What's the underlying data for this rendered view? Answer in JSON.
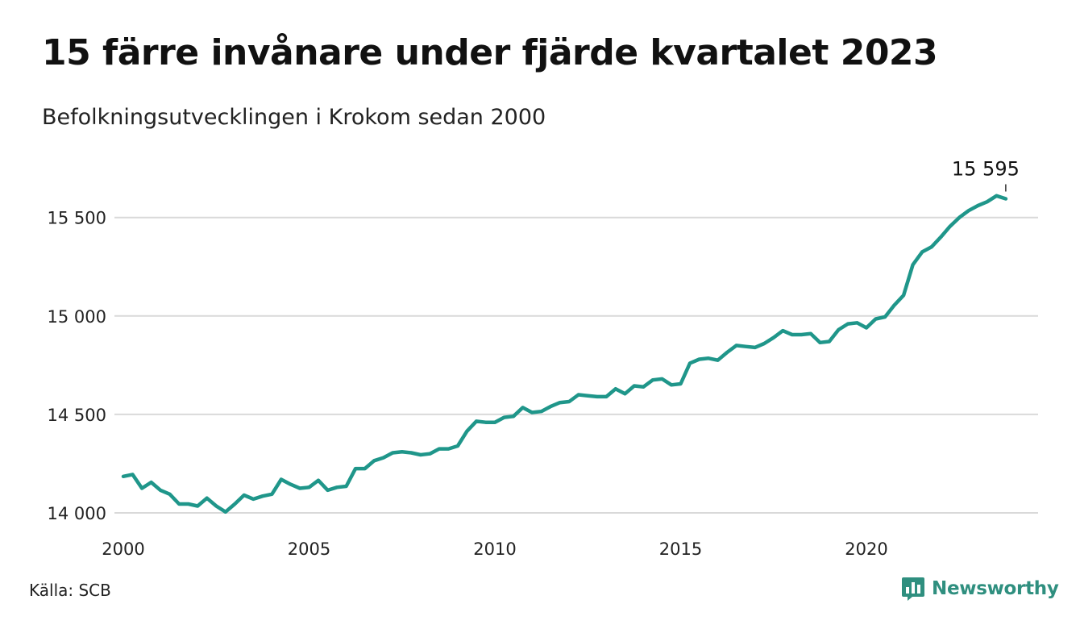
{
  "title": "15 färre invånare under fjärde kvartalet 2023",
  "subtitle": "Befolkningsutvecklingen i Krokom sedan 2000",
  "source": "Källa: SCB",
  "brand": {
    "name": "Newsworthy",
    "color": "#2f8f7f",
    "icon": "newsworthy-logo-icon"
  },
  "colors": {
    "line": "#1f968a",
    "grid": "#d9d9d9"
  },
  "chart_data": {
    "type": "line",
    "title": "15 färre invånare under fjärde kvartalet 2023",
    "subtitle": "Befolkningsutvecklingen i Krokom sedan 2000",
    "xlabel": "",
    "ylabel": "",
    "xlim": [
      2000,
      2024
    ],
    "ylim": [
      14000,
      15650
    ],
    "x_ticks": [
      2000,
      2005,
      2010,
      2015,
      2020
    ],
    "x_tick_labels": [
      "2000",
      "2005",
      "2010",
      "2015",
      "2020"
    ],
    "y_ticks": [
      14000,
      14500,
      15000,
      15500
    ],
    "y_tick_labels": [
      "14 000",
      "14 500",
      "15 000",
      "15 500"
    ],
    "grid": "horizontal",
    "annotation": {
      "text": "15 595",
      "x": 2023.75,
      "y": 15595
    },
    "series": [
      {
        "x": [
          2000.0,
          2000.25,
          2000.5,
          2000.75,
          2001.0,
          2001.25,
          2001.5,
          2001.75,
          2002.0,
          2002.25,
          2002.5,
          2002.75,
          2003.0,
          2003.25,
          2003.5,
          2003.75,
          2004.0,
          2004.25,
          2004.5,
          2004.75,
          2005.0,
          2005.25,
          2005.5,
          2005.75,
          2006.0,
          2006.25,
          2006.5,
          2006.75,
          2007.0,
          2007.25,
          2007.5,
          2007.75,
          2008.0,
          2008.25,
          2008.5,
          2008.75,
          2009.0,
          2009.25,
          2009.5,
          2009.75,
          2010.0,
          2010.25,
          2010.5,
          2010.75,
          2011.0,
          2011.25,
          2011.5,
          2011.75,
          2012.0,
          2012.25,
          2012.5,
          2012.75,
          2013.0,
          2013.25,
          2013.5,
          2013.75,
          2014.0,
          2014.25,
          2014.5,
          2014.75,
          2015.0,
          2015.25,
          2015.5,
          2015.75,
          2016.0,
          2016.25,
          2016.5,
          2016.75,
          2017.0,
          2017.25,
          2017.5,
          2017.75,
          2018.0,
          2018.25,
          2018.5,
          2018.75,
          2019.0,
          2019.25,
          2019.5,
          2019.75,
          2020.0,
          2020.25,
          2020.5,
          2020.75,
          2021.0,
          2021.25,
          2021.5,
          2021.75,
          2022.0,
          2022.25,
          2022.5,
          2022.75,
          2023.0,
          2023.25,
          2023.5,
          2023.75
        ],
        "values": [
          14185,
          14195,
          14125,
          14155,
          14115,
          14095,
          14045,
          14045,
          14035,
          14075,
          14035,
          14005,
          14045,
          14090,
          14070,
          14085,
          14095,
          14170,
          14145,
          14125,
          14130,
          14165,
          14115,
          14130,
          14135,
          14225,
          14225,
          14265,
          14280,
          14305,
          14310,
          14305,
          14295,
          14300,
          14325,
          14325,
          14340,
          14415,
          14465,
          14460,
          14460,
          14485,
          14490,
          14535,
          14510,
          14515,
          14540,
          14560,
          14565,
          14600,
          14595,
          14590,
          14590,
          14630,
          14605,
          14645,
          14640,
          14675,
          14680,
          14650,
          14655,
          14760,
          14780,
          14785,
          14775,
          14815,
          14850,
          14845,
          14840,
          14860,
          14890,
          14925,
          14905,
          14905,
          14910,
          14865,
          14870,
          14930,
          14960,
          14965,
          14940,
          14985,
          14995,
          15055,
          15105,
          15260,
          15325,
          15350,
          15400,
          15455,
          15500,
          15535,
          15560,
          15580,
          15610,
          15595
        ]
      }
    ]
  }
}
